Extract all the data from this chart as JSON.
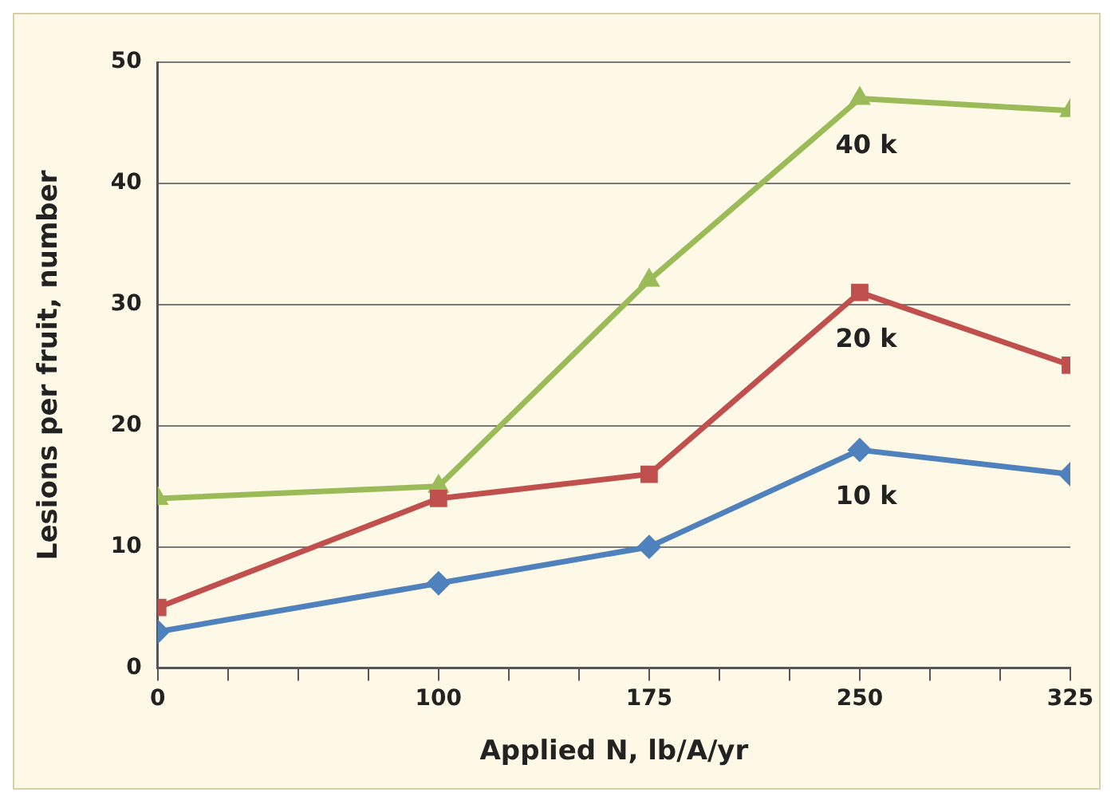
{
  "chart_data": {
    "type": "line",
    "xlabel": "Applied N, lb/A/yr",
    "ylabel": "Lesions per fruit, number",
    "x": [
      0,
      100,
      175,
      250,
      325
    ],
    "xlim": [
      0,
      325
    ],
    "xticks": [
      0,
      {
        "value": 25,
        "label": null
      },
      {
        "value": 50,
        "label": null
      },
      {
        "value": 75,
        "label": null
      },
      100,
      {
        "value": 125,
        "label": null
      },
      {
        "value": 150,
        "label": null
      },
      175,
      {
        "value": 200,
        "label": null
      },
      {
        "value": 225,
        "label": null
      },
      250,
      {
        "value": 275,
        "label": null
      },
      {
        "value": 300,
        "label": null
      },
      325
    ],
    "ylim": [
      0,
      50
    ],
    "yticks": [
      0,
      10,
      20,
      30,
      40,
      50
    ],
    "grid": "y",
    "legend": false,
    "series": [
      {
        "name": "10 k",
        "color": "#4f81bd",
        "marker": "diamond",
        "values": [
          3,
          7,
          10,
          18,
          16
        ]
      },
      {
        "name": "20 k",
        "color": "#c0504d",
        "marker": "square",
        "values": [
          5,
          14,
          16,
          31,
          25
        ]
      },
      {
        "name": "40 k",
        "color": "#9bbb59",
        "marker": "triangle",
        "values": [
          14,
          15,
          32,
          47,
          46
        ]
      }
    ]
  }
}
